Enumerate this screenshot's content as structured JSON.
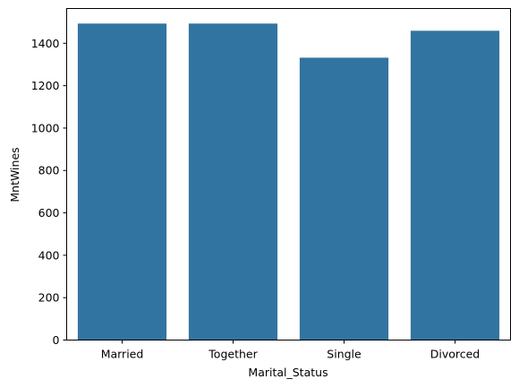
{
  "chart_data": {
    "type": "bar",
    "title": "",
    "xlabel": "Marital_Status",
    "ylabel": "MntWines",
    "categories": [
      "Married",
      "Together",
      "Single",
      "Divorced"
    ],
    "values": [
      1493,
      1493,
      1332,
      1459
    ],
    "ylim": [
      0,
      1564
    ],
    "yticks": [
      0,
      200,
      400,
      600,
      800,
      1000,
      1200,
      1400
    ],
    "bar_color": "#3274a1",
    "grid": false,
    "legend": "none"
  }
}
